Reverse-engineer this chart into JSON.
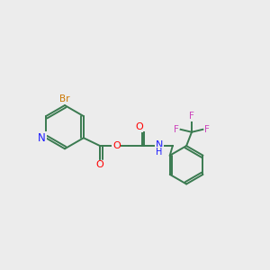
{
  "background_color": "#ECECEC",
  "bond_color": "#3a7a50",
  "bond_width": 1.4,
  "atom_colors": {
    "N": "#1a1aff",
    "O": "#ff0000",
    "Br": "#cc7700",
    "F": "#cc44bb",
    "C": "#3a7a50"
  },
  "figsize": [
    3.0,
    3.0
  ],
  "dpi": 100
}
